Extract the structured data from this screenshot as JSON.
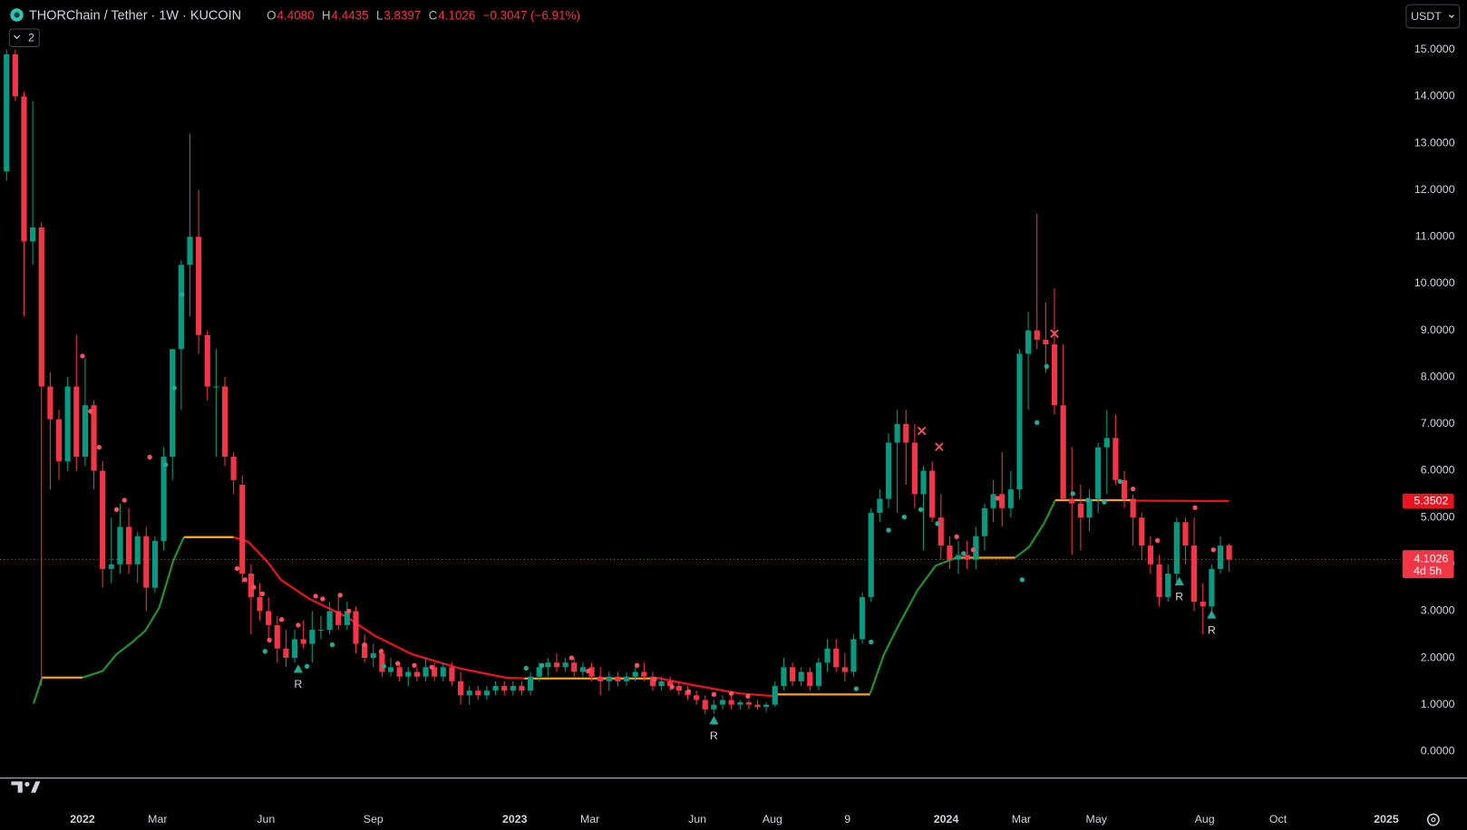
{
  "header": {
    "title": "THORChain / Tether · 1W · KUCOIN",
    "legend": [
      {
        "key": "O",
        "text": "4.4080"
      },
      {
        "key": "H",
        "text": "4.4435"
      },
      {
        "key": "L",
        "text": "3.8397"
      },
      {
        "key": "C",
        "text": "4.1026"
      }
    ],
    "change": "−0.3047 (−6.91%)",
    "indicator_count": "2",
    "currency": "USDT"
  },
  "chart_data": {
    "type": "candlestick",
    "up_color": "#089981",
    "down_color": "#f23645",
    "grid": false,
    "ohlc": [
      [
        12.4,
        15.0,
        12.2,
        14.9
      ],
      [
        14.9,
        15.0,
        13.9,
        14.0
      ],
      [
        14.0,
        14.1,
        9.3,
        10.9
      ],
      [
        10.9,
        13.9,
        10.4,
        11.2
      ],
      [
        11.2,
        11.3,
        1.4,
        7.8
      ],
      [
        7.8,
        8.1,
        5.6,
        7.1
      ],
      [
        7.1,
        7.3,
        5.8,
        6.2
      ],
      [
        6.2,
        8.0,
        6.0,
        7.8
      ],
      [
        7.8,
        8.9,
        6.0,
        6.3
      ],
      [
        6.3,
        8.4,
        6.1,
        7.4
      ],
      [
        7.4,
        7.5,
        5.6,
        6.0
      ],
      [
        6.0,
        6.2,
        3.5,
        3.9
      ],
      [
        3.9,
        5.0,
        3.6,
        4.0
      ],
      [
        4.0,
        5.3,
        3.8,
        4.8
      ],
      [
        4.8,
        5.2,
        3.8,
        4.0
      ],
      [
        4.0,
        4.7,
        3.6,
        4.6
      ],
      [
        4.6,
        4.8,
        3.0,
        3.5
      ],
      [
        3.5,
        4.6,
        3.4,
        4.5
      ],
      [
        4.5,
        6.5,
        4.3,
        6.3
      ],
      [
        6.3,
        8.6,
        5.8,
        8.6
      ],
      [
        8.6,
        10.5,
        7.3,
        10.4
      ],
      [
        10.4,
        13.2,
        9.3,
        11.0
      ],
      [
        11.0,
        12.0,
        8.5,
        8.9
      ],
      [
        8.9,
        9.0,
        7.5,
        7.8
      ],
      [
        7.8,
        8.6,
        6.3,
        7.8
      ],
      [
        7.8,
        8.0,
        6.1,
        6.3
      ],
      [
        6.3,
        6.4,
        5.5,
        5.8
      ],
      [
        5.7,
        5.9,
        3.6,
        3.8
      ],
      [
        3.8,
        4.0,
        2.5,
        3.3
      ],
      [
        3.3,
        3.6,
        2.8,
        3.0
      ],
      [
        3.0,
        3.3,
        2.4,
        2.7
      ],
      [
        2.7,
        2.9,
        1.9,
        2.2
      ],
      [
        2.2,
        2.6,
        1.8,
        2.0
      ],
      [
        2.0,
        2.6,
        1.9,
        2.4
      ],
      [
        2.4,
        2.8,
        2.2,
        2.3
      ],
      [
        2.3,
        3.0,
        1.9,
        2.6
      ],
      [
        2.6,
        2.9,
        2.4,
        2.6
      ],
      [
        2.6,
        3.2,
        2.5,
        3.0
      ],
      [
        3.0,
        3.3,
        2.6,
        2.7
      ],
      [
        2.7,
        3.2,
        2.6,
        3.0
      ],
      [
        3.0,
        3.1,
        2.1,
        2.3
      ],
      [
        2.3,
        2.5,
        1.9,
        2.0
      ],
      [
        2.0,
        2.3,
        1.8,
        2.1
      ],
      [
        2.1,
        2.2,
        1.6,
        1.7
      ],
      [
        1.7,
        2.0,
        1.6,
        1.8
      ],
      [
        1.8,
        1.9,
        1.5,
        1.6
      ],
      [
        1.6,
        1.8,
        1.4,
        1.7
      ],
      [
        1.7,
        1.8,
        1.5,
        1.6
      ],
      [
        1.6,
        2.0,
        1.5,
        1.8
      ],
      [
        1.8,
        1.9,
        1.5,
        1.6
      ],
      [
        1.6,
        1.9,
        1.5,
        1.8
      ],
      [
        1.8,
        1.9,
        1.4,
        1.5
      ],
      [
        1.5,
        1.7,
        1.0,
        1.2
      ],
      [
        1.2,
        1.4,
        1.0,
        1.3
      ],
      [
        1.3,
        1.4,
        1.1,
        1.2
      ],
      [
        1.2,
        1.4,
        1.1,
        1.3
      ],
      [
        1.3,
        1.5,
        1.2,
        1.4
      ],
      [
        1.4,
        1.5,
        1.2,
        1.3
      ],
      [
        1.3,
        1.5,
        1.2,
        1.4
      ],
      [
        1.4,
        1.5,
        1.2,
        1.3
      ],
      [
        1.3,
        1.7,
        1.2,
        1.6
      ],
      [
        1.6,
        1.9,
        1.5,
        1.8
      ],
      [
        1.8,
        2.0,
        1.6,
        1.9
      ],
      [
        1.9,
        2.1,
        1.7,
        1.8
      ],
      [
        1.8,
        2.0,
        1.7,
        1.9
      ],
      [
        1.9,
        2.0,
        1.6,
        1.7
      ],
      [
        1.7,
        1.9,
        1.6,
        1.8
      ],
      [
        1.8,
        1.9,
        1.5,
        1.6
      ],
      [
        1.6,
        1.8,
        1.2,
        1.5
      ],
      [
        1.5,
        1.7,
        1.3,
        1.6
      ],
      [
        1.6,
        1.7,
        1.4,
        1.5
      ],
      [
        1.5,
        1.7,
        1.4,
        1.6
      ],
      [
        1.6,
        1.8,
        1.5,
        1.7
      ],
      [
        1.7,
        1.9,
        1.5,
        1.6
      ],
      [
        1.6,
        1.7,
        1.3,
        1.4
      ],
      [
        1.4,
        1.6,
        1.3,
        1.5
      ],
      [
        1.5,
        1.6,
        1.3,
        1.4
      ],
      [
        1.4,
        1.5,
        1.2,
        1.3
      ],
      [
        1.3,
        1.4,
        1.1,
        1.2
      ],
      [
        1.2,
        1.3,
        1.0,
        1.1
      ],
      [
        1.1,
        1.2,
        0.8,
        0.9
      ],
      [
        0.9,
        1.1,
        0.8,
        1.0
      ],
      [
        1.0,
        1.2,
        0.9,
        1.1
      ],
      [
        1.1,
        1.2,
        0.9,
        1.0
      ],
      [
        1.0,
        1.1,
        0.9,
        1.05
      ],
      [
        1.05,
        1.1,
        0.9,
        1.0
      ],
      [
        1.0,
        1.1,
        0.9,
        0.95
      ],
      [
        0.95,
        1.05,
        0.85,
        1.0
      ],
      [
        1.0,
        1.5,
        0.95,
        1.4
      ],
      [
        1.4,
        2.0,
        1.3,
        1.8
      ],
      [
        1.8,
        1.9,
        1.4,
        1.5
      ],
      [
        1.5,
        1.8,
        1.4,
        1.7
      ],
      [
        1.7,
        1.8,
        1.3,
        1.4
      ],
      [
        1.4,
        2.0,
        1.3,
        1.9
      ],
      [
        1.9,
        2.4,
        1.7,
        2.2
      ],
      [
        2.2,
        2.4,
        1.7,
        1.8
      ],
      [
        1.8,
        2.1,
        1.5,
        1.7
      ],
      [
        1.7,
        2.5,
        1.6,
        2.4
      ],
      [
        2.4,
        3.4,
        2.3,
        3.3
      ],
      [
        3.3,
        5.2,
        3.2,
        5.1
      ],
      [
        5.1,
        5.6,
        4.9,
        5.4
      ],
      [
        5.4,
        6.8,
        5.2,
        6.6
      ],
      [
        6.6,
        7.3,
        5.1,
        7.0
      ],
      [
        7.0,
        7.3,
        5.7,
        6.6
      ],
      [
        6.6,
        7.0,
        5.2,
        5.5
      ],
      [
        5.5,
        6.1,
        4.3,
        6.0
      ],
      [
        6.0,
        6.2,
        4.9,
        5.0
      ],
      [
        5.0,
        5.5,
        4.1,
        4.4
      ],
      [
        4.4,
        4.6,
        3.9,
        4.1
      ],
      [
        4.1,
        4.5,
        3.8,
        4.2
      ],
      [
        4.2,
        4.5,
        3.9,
        4.1
      ],
      [
        4.1,
        4.8,
        3.9,
        4.6
      ],
      [
        4.6,
        5.3,
        4.3,
        5.2
      ],
      [
        5.2,
        5.8,
        4.9,
        5.5
      ],
      [
        5.5,
        6.4,
        4.8,
        5.2
      ],
      [
        5.2,
        6.0,
        5.0,
        5.6
      ],
      [
        5.6,
        8.6,
        5.4,
        8.5
      ],
      [
        8.5,
        9.4,
        7.3,
        9.0
      ],
      [
        9.0,
        11.5,
        8.6,
        8.8
      ],
      [
        8.8,
        9.6,
        8.1,
        8.7
      ],
      [
        8.7,
        9.9,
        7.2,
        7.4
      ],
      [
        7.4,
        8.7,
        5.4,
        5.4
      ],
      [
        5.4,
        6.5,
        4.2,
        5.3
      ],
      [
        5.3,
        5.7,
        4.3,
        5.0
      ],
      [
        5.0,
        5.6,
        4.7,
        5.4
      ],
      [
        5.4,
        6.6,
        5.1,
        6.5
      ],
      [
        6.5,
        7.3,
        5.5,
        6.7
      ],
      [
        6.7,
        7.2,
        5.7,
        5.8
      ],
      [
        5.8,
        6.0,
        5.2,
        5.4
      ],
      [
        5.4,
        5.5,
        4.4,
        5.0
      ],
      [
        5.0,
        5.1,
        4.1,
        4.4
      ],
      [
        4.4,
        4.6,
        3.8,
        4.0
      ],
      [
        4.0,
        4.2,
        3.1,
        3.3
      ],
      [
        3.3,
        4.0,
        3.2,
        3.8
      ],
      [
        3.8,
        5.0,
        3.6,
        4.9
      ],
      [
        4.9,
        5.0,
        4.0,
        4.4
      ],
      [
        4.4,
        5.0,
        3.0,
        3.2
      ],
      [
        3.2,
        3.6,
        2.5,
        3.1
      ],
      [
        3.1,
        4.0,
        3.0,
        3.9
      ],
      [
        3.9,
        4.6,
        3.8,
        4.4
      ],
      [
        4.408,
        4.4435,
        3.8397,
        4.1026
      ]
    ],
    "xlim": [
      -0.75,
      159.1
    ],
    "xticks": [
      {
        "value": 8.7,
        "label": "2022"
      },
      {
        "value": 17.3,
        "label": "Mar"
      },
      {
        "value": 29.7,
        "label": "Jun"
      },
      {
        "value": 42.0,
        "label": "Sep"
      },
      {
        "value": 58.2,
        "label": "2023"
      },
      {
        "value": 66.8,
        "label": "Mar"
      },
      {
        "value": 79.1,
        "label": "Jun"
      },
      {
        "value": 87.7,
        "label": "Aug"
      },
      {
        "value": 96.3,
        "label": "9"
      },
      {
        "value": 107.6,
        "label": "2024"
      },
      {
        "value": 116.2,
        "label": "Mar"
      },
      {
        "value": 124.8,
        "label": "May"
      },
      {
        "value": 137.2,
        "label": "Aug"
      },
      {
        "value": 145.6,
        "label": "Oct"
      },
      {
        "value": 158.0,
        "label": "2025"
      }
    ],
    "ylim": [
      -0.56,
      16.06
    ],
    "yticks": [
      {
        "value": 0,
        "label": "0.0000"
      },
      {
        "value": 1,
        "label": "1.0000"
      },
      {
        "value": 2,
        "label": "2.0000"
      },
      {
        "value": 3,
        "label": "3.0000"
      },
      {
        "value": 4,
        "label": "4.0000"
      },
      {
        "value": 5,
        "label": "5.0000"
      },
      {
        "value": 6,
        "label": "6.0000"
      },
      {
        "value": 7,
        "label": "7.0000"
      },
      {
        "value": 8,
        "label": "8.0000"
      },
      {
        "value": 9,
        "label": "9.0000"
      },
      {
        "value": 10,
        "label": "10.0000"
      },
      {
        "value": 11,
        "label": "11.0000"
      },
      {
        "value": 12,
        "label": "12.0000"
      },
      {
        "value": 13,
        "label": "13.0000"
      },
      {
        "value": 14,
        "label": "14.0000"
      },
      {
        "value": 15,
        "label": "15.0000"
      }
    ],
    "last_price": 4.1026,
    "countdown": "4d 5h",
    "trend_tag": 5.3502,
    "trend": [
      {
        "color": "#1f8f2e",
        "x": [
          3.1,
          4.1
        ],
        "values": [
          1.02,
          1.6
        ]
      },
      {
        "color": "#f7a21b",
        "x": [
          4.1,
          8.7
        ],
        "values": [
          1.58,
          1.58
        ]
      },
      {
        "color": "#1f8f2e",
        "x": [
          8.7,
          11.0,
          12.6,
          14.3,
          15.9,
          17.5,
          19.1,
          20.3
        ],
        "values": [
          1.58,
          1.72,
          2.08,
          2.32,
          2.58,
          3.08,
          4.08,
          4.58
        ]
      },
      {
        "color": "#f7a21b",
        "x": [
          20.3,
          26.0
        ],
        "values": [
          4.58,
          4.58
        ]
      },
      {
        "color": "#e8141e",
        "x": [
          26.0,
          27.7,
          29.8,
          31.4,
          34.6,
          38.9,
          42.1,
          46.4,
          51.8,
          57.1,
          59.3
        ],
        "values": [
          4.58,
          4.48,
          4.07,
          3.67,
          3.27,
          2.88,
          2.48,
          2.08,
          1.78,
          1.58,
          1.56
        ]
      },
      {
        "color": "#f7a21b",
        "x": [
          59.3,
          74.3
        ],
        "values": [
          1.56,
          1.56
        ]
      },
      {
        "color": "#e8141e",
        "x": [
          74.3,
          78.6,
          83.9,
          88.2
        ],
        "values": [
          1.58,
          1.42,
          1.24,
          1.18
        ]
      },
      {
        "color": "#f7a21b",
        "x": [
          88.2,
          98.9
        ],
        "values": [
          1.22,
          1.22
        ]
      },
      {
        "color": "#1f8f2e",
        "x": [
          98.9,
          100.5,
          102.1,
          104.3,
          106.4,
          108.6
        ],
        "values": [
          1.24,
          2.08,
          2.68,
          3.44,
          3.97,
          4.13
        ]
      },
      {
        "color": "#f7a21b",
        "x": [
          108.6,
          115.5
        ],
        "values": [
          4.14,
          4.14
        ]
      },
      {
        "color": "#1f8f2e",
        "x": [
          115.5,
          117.1,
          118.8,
          120.1
        ],
        "values": [
          4.14,
          4.37,
          4.87,
          5.37
        ]
      },
      {
        "color": "#f7a21b",
        "x": [
          120.1,
          128.9
        ],
        "values": [
          5.37,
          5.37
        ]
      },
      {
        "color": "#e8141e",
        "x": [
          128.9,
          140
        ],
        "values": [
          5.36,
          5.35
        ]
      }
    ],
    "dots": [
      {
        "color": "#f7525f",
        "x": [
          8.7,
          9.6,
          10.6,
          12.6,
          13.5,
          16.4,
          26.4,
          27.3,
          28.3,
          29.3,
          30.1,
          31.5,
          33.4,
          35.4,
          36.2,
          38.2,
          39.2,
          41.0,
          42.9,
          44.8,
          46.7,
          48.7,
          64.7,
          66.6,
          72.2,
          74.2,
          76.2,
          78.1,
          81.0,
          83.0,
          84.9,
          108.8,
          110.7,
          113.5,
          129.0,
          131.8,
          136.1,
          138.2
        ],
        "values": [
          8.45,
          7.27,
          6.5,
          5.17,
          5.37,
          6.29,
          3.91,
          3.67,
          3.51,
          3.37,
          2.38,
          2.82,
          2.7,
          3.32,
          3.26,
          3.34,
          3.0,
          2.28,
          2.14,
          1.88,
          1.84,
          1.8,
          2.0,
          1.72,
          1.84,
          1.54,
          1.38,
          1.28,
          1.22,
          1.24,
          1.18,
          4.59,
          4.31,
          5.41,
          5.61,
          4.51,
          5.21,
          4.31
        ]
      },
      {
        "color": "#22ab94",
        "x": [
          18.2,
          19.2,
          20.1,
          29.6,
          34.4,
          37.3,
          43.2,
          59.5,
          61.3,
          97.3,
          99.0,
          101.0,
          102.8,
          104.7,
          106.6,
          109.6,
          116.3,
          118.0,
          119.1,
          122.1,
          123.8,
          125.7,
          127.5,
          134.3
        ],
        "values": [
          6.13,
          7.77,
          9.77,
          2.14,
          1.82,
          2.28,
          1.82,
          1.78,
          1.84,
          1.34,
          2.34,
          4.73,
          5.01,
          5.17,
          4.87,
          4.23,
          3.67,
          7.03,
          8.23,
          5.51,
          5.37,
          5.33,
          5.77,
          3.63
        ]
      }
    ],
    "signals": {
      "color": "#22ab94",
      "x": [
        33.4,
        81.0,
        134.3,
        138.0
      ],
      "values": [
        1.76,
        0.66,
        3.63,
        2.92
      ],
      "labels": [
        "R",
        "R",
        "R",
        "R"
      ]
    },
    "crosses": {
      "color": "#f7525f",
      "x": [
        104.8,
        106.8,
        120.0
      ],
      "values": [
        6.85,
        6.51,
        8.93
      ]
    }
  }
}
